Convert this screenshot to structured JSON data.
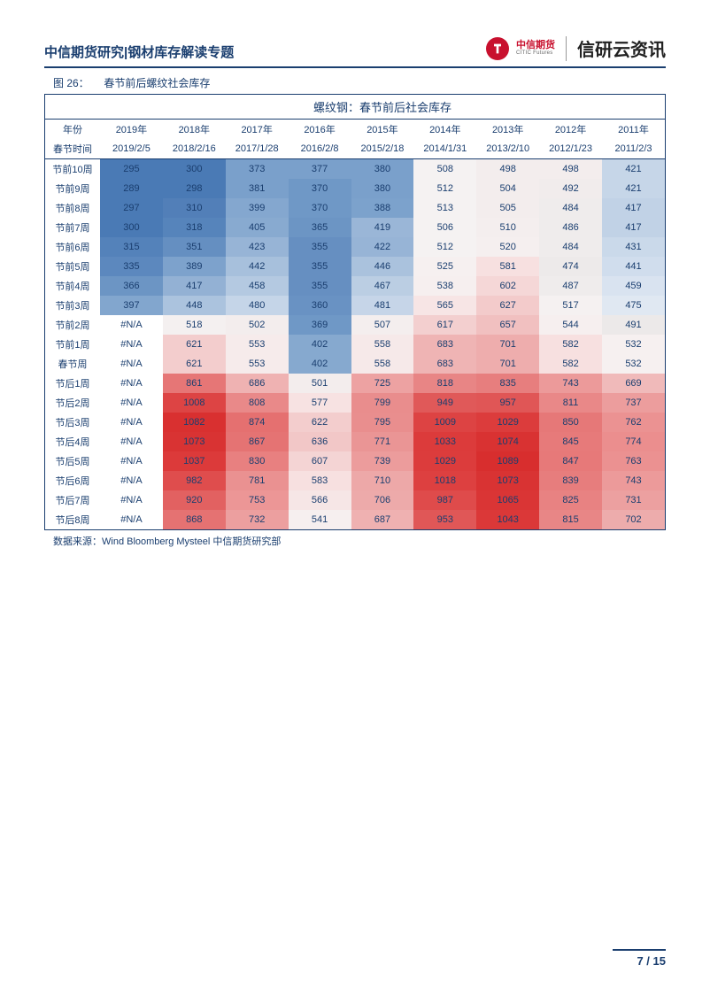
{
  "header": {
    "title": "中信期货研究|钢材库存解读专题",
    "logo_cn": "中信期货",
    "logo_en": "CITIC Futures",
    "brand": "信研云资讯"
  },
  "figure": {
    "label": "图 26：",
    "title": "春节前后螺纹社会库存"
  },
  "table": {
    "main_title": "螺纹钢：春节前后社会库存",
    "header_labels": {
      "year": "年份",
      "date": "春节时间"
    },
    "years": [
      "2019年",
      "2018年",
      "2017年",
      "2016年",
      "2015年",
      "2014年",
      "2013年",
      "2012年",
      "2011年"
    ],
    "dates": [
      "2019/2/5",
      "2018/2/16",
      "2017/1/28",
      "2016/2/8",
      "2015/2/18",
      "2014/1/31",
      "2013/2/10",
      "2012/1/23",
      "2011/2/3"
    ],
    "row_labels": [
      "节前10周",
      "节前9周",
      "节前8周",
      "节前7周",
      "节前6周",
      "节前5周",
      "节前4周",
      "节前3周",
      "节前2周",
      "节前1周",
      "春节周",
      "节后1周",
      "节后2周",
      "节后3周",
      "节后4周",
      "节后5周",
      "节后6周",
      "节后7周",
      "节后8周"
    ],
    "cells": [
      [
        {
          "v": "295",
          "c": "#4a7ab5"
        },
        {
          "v": "300",
          "c": "#4a7ab5"
        },
        {
          "v": "373",
          "c": "#7aa0cb"
        },
        {
          "v": "377",
          "c": "#7aa0cb"
        },
        {
          "v": "380",
          "c": "#7aa0cb"
        },
        {
          "v": "508",
          "c": "#f5f2f2"
        },
        {
          "v": "498",
          "c": "#f3eded"
        },
        {
          "v": "498",
          "c": "#f3eded"
        },
        {
          "v": "421",
          "c": "#c6d6e8"
        }
      ],
      [
        {
          "v": "289",
          "c": "#4a7ab5"
        },
        {
          "v": "298",
          "c": "#4a7ab5"
        },
        {
          "v": "381",
          "c": "#7aa0cb"
        },
        {
          "v": "370",
          "c": "#6f98c6"
        },
        {
          "v": "380",
          "c": "#7aa0cb"
        },
        {
          "v": "512",
          "c": "#f5f2f2"
        },
        {
          "v": "504",
          "c": "#f3eded"
        },
        {
          "v": "492",
          "c": "#f1ecec"
        },
        {
          "v": "421",
          "c": "#c6d6e8"
        }
      ],
      [
        {
          "v": "297",
          "c": "#4a7ab5"
        },
        {
          "v": "310",
          "c": "#527fb8"
        },
        {
          "v": "399",
          "c": "#84a7cf"
        },
        {
          "v": "370",
          "c": "#6f98c6"
        },
        {
          "v": "388",
          "c": "#7ca2cc"
        },
        {
          "v": "513",
          "c": "#f5f2f2"
        },
        {
          "v": "505",
          "c": "#f3eded"
        },
        {
          "v": "484",
          "c": "#efecec"
        },
        {
          "v": "417",
          "c": "#c1d2e6"
        }
      ],
      [
        {
          "v": "300",
          "c": "#4a7ab5"
        },
        {
          "v": "318",
          "c": "#5684bb"
        },
        {
          "v": "405",
          "c": "#88aad0"
        },
        {
          "v": "365",
          "c": "#6c95c4"
        },
        {
          "v": "419",
          "c": "#9ab6d7"
        },
        {
          "v": "506",
          "c": "#f5f2f2"
        },
        {
          "v": "510",
          "c": "#f4eeee"
        },
        {
          "v": "486",
          "c": "#efecec"
        },
        {
          "v": "417",
          "c": "#c1d2e6"
        }
      ],
      [
        {
          "v": "315",
          "c": "#5482ba"
        },
        {
          "v": "351",
          "c": "#658fc1"
        },
        {
          "v": "423",
          "c": "#97b4d6"
        },
        {
          "v": "355",
          "c": "#668fc1"
        },
        {
          "v": "422",
          "c": "#97b4d6"
        },
        {
          "v": "512",
          "c": "#f5f2f2"
        },
        {
          "v": "520",
          "c": "#f5efef"
        },
        {
          "v": "484",
          "c": "#efecec"
        },
        {
          "v": "431",
          "c": "#cad9ea"
        }
      ],
      [
        {
          "v": "335",
          "c": "#5c88be"
        },
        {
          "v": "389",
          "c": "#7da2cc"
        },
        {
          "v": "442",
          "c": "#a7c0dc"
        },
        {
          "v": "355",
          "c": "#668fc1"
        },
        {
          "v": "446",
          "c": "#aac2dd"
        },
        {
          "v": "525",
          "c": "#f6f0f0"
        },
        {
          "v": "581",
          "c": "#f7e0e0"
        },
        {
          "v": "474",
          "c": "#edeaea"
        },
        {
          "v": "441",
          "c": "#d0dded"
        }
      ],
      [
        {
          "v": "366",
          "c": "#6c95c4"
        },
        {
          "v": "417",
          "c": "#93b1d4"
        },
        {
          "v": "458",
          "c": "#b4c9e1"
        },
        {
          "v": "355",
          "c": "#668fc1"
        },
        {
          "v": "467",
          "c": "#bbcee3"
        },
        {
          "v": "538",
          "c": "#f6efef"
        },
        {
          "v": "602",
          "c": "#f5d7d7"
        },
        {
          "v": "487",
          "c": "#efecec"
        },
        {
          "v": "459",
          "c": "#d9e3f0"
        }
      ],
      [
        {
          "v": "397",
          "c": "#82a6ce"
        },
        {
          "v": "448",
          "c": "#abc3de"
        },
        {
          "v": "480",
          "c": "#c5d5e8"
        },
        {
          "v": "360",
          "c": "#6992c3"
        },
        {
          "v": "481",
          "c": "#c6d5e8"
        },
        {
          "v": "565",
          "c": "#f7e5e5"
        },
        {
          "v": "627",
          "c": "#f3cbcb"
        },
        {
          "v": "517",
          "c": "#f5f1f1"
        },
        {
          "v": "475",
          "c": "#e0e8f2"
        }
      ],
      [
        {
          "v": "#N/A",
          "c": "#ffffff"
        },
        {
          "v": "518",
          "c": "#f4f0f0"
        },
        {
          "v": "502",
          "c": "#f3eded"
        },
        {
          "v": "369",
          "c": "#6f98c6"
        },
        {
          "v": "507",
          "c": "#f4eeee"
        },
        {
          "v": "617",
          "c": "#f3cfcf"
        },
        {
          "v": "657",
          "c": "#f1c0c0"
        },
        {
          "v": "544",
          "c": "#f6efef"
        },
        {
          "v": "491",
          "c": "#ece9e9"
        }
      ],
      [
        {
          "v": "#N/A",
          "c": "#ffffff"
        },
        {
          "v": "621",
          "c": "#f3cdcd"
        },
        {
          "v": "553",
          "c": "#f6ebeb"
        },
        {
          "v": "402",
          "c": "#86a9cf"
        },
        {
          "v": "558",
          "c": "#f6e9e9"
        },
        {
          "v": "683",
          "c": "#efb4b4"
        },
        {
          "v": "701",
          "c": "#eeadad"
        },
        {
          "v": "582",
          "c": "#f7e0e0"
        },
        {
          "v": "532",
          "c": "#f6f0f0"
        }
      ],
      [
        {
          "v": "#N/A",
          "c": "#ffffff"
        },
        {
          "v": "621",
          "c": "#f3cdcd"
        },
        {
          "v": "553",
          "c": "#f6ebeb"
        },
        {
          "v": "402",
          "c": "#86a9cf"
        },
        {
          "v": "558",
          "c": "#f6e9e9"
        },
        {
          "v": "683",
          "c": "#efb4b4"
        },
        {
          "v": "701",
          "c": "#eeadad"
        },
        {
          "v": "582",
          "c": "#f7e0e0"
        },
        {
          "v": "532",
          "c": "#f6f0f0"
        }
      ],
      [
        {
          "v": "#N/A",
          "c": "#ffffff"
        },
        {
          "v": "861",
          "c": "#e67676"
        },
        {
          "v": "686",
          "c": "#efb2b2"
        },
        {
          "v": "501",
          "c": "#f3eded"
        },
        {
          "v": "725",
          "c": "#eda2a2"
        },
        {
          "v": "818",
          "c": "#e88585"
        },
        {
          "v": "835",
          "c": "#e77e7e"
        },
        {
          "v": "743",
          "c": "#ec9a9a"
        },
        {
          "v": "669",
          "c": "#f0baba"
        }
      ],
      [
        {
          "v": "#N/A",
          "c": "#ffffff"
        },
        {
          "v": "1008",
          "c": "#dd4444"
        },
        {
          "v": "808",
          "c": "#e98989"
        },
        {
          "v": "577",
          "c": "#f7e2e2"
        },
        {
          "v": "799",
          "c": "#e98d8d"
        },
        {
          "v": "949",
          "c": "#e05959"
        },
        {
          "v": "957",
          "c": "#e05656"
        },
        {
          "v": "811",
          "c": "#e98888"
        },
        {
          "v": "737",
          "c": "#ec9d9d"
        }
      ],
      [
        {
          "v": "#N/A",
          "c": "#ffffff"
        },
        {
          "v": "1082",
          "c": "#d93030"
        },
        {
          "v": "874",
          "c": "#e57070"
        },
        {
          "v": "622",
          "c": "#f3cdcd"
        },
        {
          "v": "795",
          "c": "#e98e8e"
        },
        {
          "v": "1009",
          "c": "#dd4343"
        },
        {
          "v": "1029",
          "c": "#dc3c3c"
        },
        {
          "v": "850",
          "c": "#e67878"
        },
        {
          "v": "762",
          "c": "#eb9292"
        }
      ],
      [
        {
          "v": "#N/A",
          "c": "#ffffff"
        },
        {
          "v": "1073",
          "c": "#d93333"
        },
        {
          "v": "867",
          "c": "#e57373"
        },
        {
          "v": "636",
          "c": "#f2c7c7"
        },
        {
          "v": "771",
          "c": "#ea9595"
        },
        {
          "v": "1033",
          "c": "#dc3b3b"
        },
        {
          "v": "1074",
          "c": "#d93232"
        },
        {
          "v": "845",
          "c": "#e77a7a"
        },
        {
          "v": "774",
          "c": "#eb8e8e"
        }
      ],
      [
        {
          "v": "#N/A",
          "c": "#ffffff"
        },
        {
          "v": "1037",
          "c": "#dc3a3a"
        },
        {
          "v": "830",
          "c": "#e88080"
        },
        {
          "v": "607",
          "c": "#f4d4d4"
        },
        {
          "v": "739",
          "c": "#ec9c9c"
        },
        {
          "v": "1029",
          "c": "#dc3c3c"
        },
        {
          "v": "1089",
          "c": "#d82e2e"
        },
        {
          "v": "847",
          "c": "#e77979"
        },
        {
          "v": "763",
          "c": "#eb9191"
        }
      ],
      [
        {
          "v": "#N/A",
          "c": "#ffffff"
        },
        {
          "v": "982",
          "c": "#df4d4d"
        },
        {
          "v": "781",
          "c": "#ea9191"
        },
        {
          "v": "583",
          "c": "#f7e0e0"
        },
        {
          "v": "710",
          "c": "#eda8a8"
        },
        {
          "v": "1018",
          "c": "#dd4040"
        },
        {
          "v": "1073",
          "c": "#d93333"
        },
        {
          "v": "839",
          "c": "#e77d7d"
        },
        {
          "v": "743",
          "c": "#ec9a9a"
        }
      ],
      [
        {
          "v": "#N/A",
          "c": "#ffffff"
        },
        {
          "v": "920",
          "c": "#e26161"
        },
        {
          "v": "753",
          "c": "#ec9696"
        },
        {
          "v": "566",
          "c": "#f6e6e6"
        },
        {
          "v": "706",
          "c": "#edaaaa"
        },
        {
          "v": "987",
          "c": "#df4b4b"
        },
        {
          "v": "1065",
          "c": "#da3535"
        },
        {
          "v": "825",
          "c": "#e88282"
        },
        {
          "v": "731",
          "c": "#eca0a0"
        }
      ],
      [
        {
          "v": "#N/A",
          "c": "#ffffff"
        },
        {
          "v": "868",
          "c": "#e57272"
        },
        {
          "v": "732",
          "c": "#ec9f9f"
        },
        {
          "v": "541",
          "c": "#f6efef"
        },
        {
          "v": "687",
          "c": "#efb1b1"
        },
        {
          "v": "953",
          "c": "#e05757"
        },
        {
          "v": "1043",
          "c": "#db3838"
        },
        {
          "v": "815",
          "c": "#e88686"
        },
        {
          "v": "702",
          "c": "#edacac"
        }
      ]
    ]
  },
  "source_label": "数据来源：",
  "source_text": "Wind Bloomberg Mysteel 中信期货研究部",
  "footer": {
    "page": "7",
    "sep": " / ",
    "total": "15"
  }
}
